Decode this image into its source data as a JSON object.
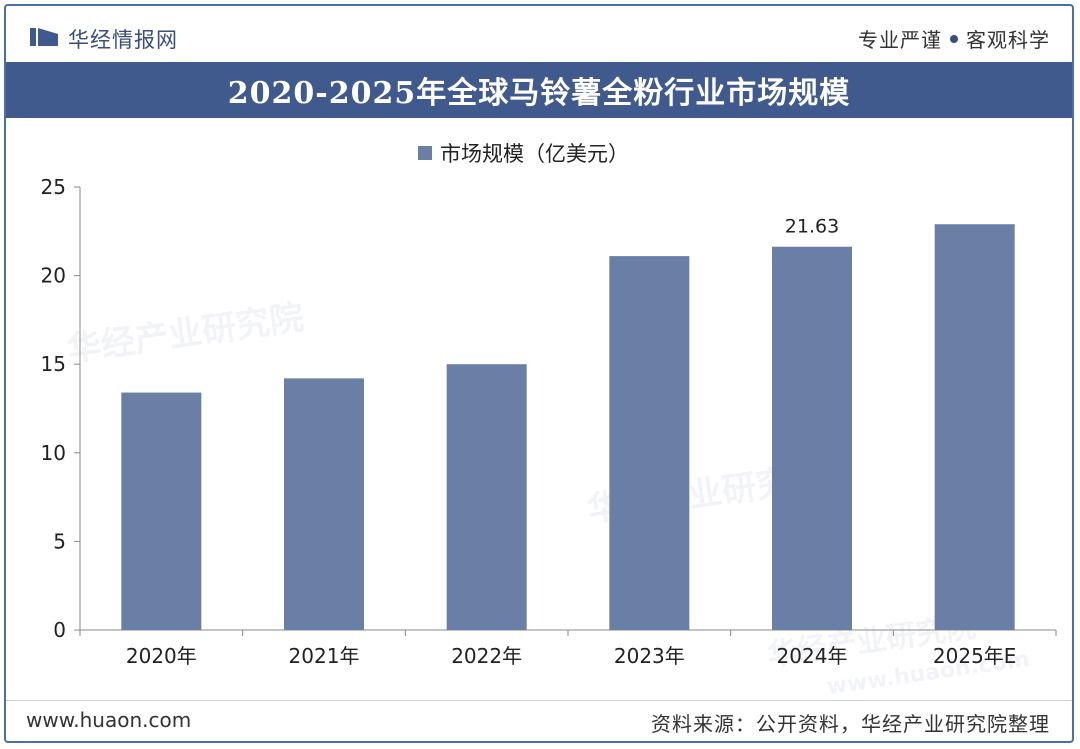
{
  "header": {
    "brand": "华经情报网",
    "slogan_left": "专业严谨",
    "slogan_right": "客观科学"
  },
  "title": "2020-2025年全球马铃薯全粉行业市场规模",
  "footer": {
    "site": "www.huaon.com",
    "source": "资料来源：公开资料，华经产业研究院整理"
  },
  "watermark": {
    "text": "华经产业研究院",
    "url": "www.huaon.com"
  },
  "colors": {
    "accent": "#405a8e",
    "bar": "#6a7fa6",
    "axis": "#888888"
  },
  "chart_data": {
    "type": "bar",
    "categories": [
      "2020年",
      "2021年",
      "2022年",
      "2023年",
      "2024年",
      "2025年E"
    ],
    "series": [
      {
        "name": "市场规模（亿美元）",
        "values": [
          13.4,
          14.2,
          15.0,
          21.1,
          21.63,
          22.9
        ]
      }
    ],
    "data_labels": [
      null,
      null,
      null,
      null,
      "21.63",
      null
    ],
    "yticks": [
      "0",
      "5",
      "10",
      "15",
      "20",
      "25"
    ],
    "ylim": [
      0,
      25
    ],
    "grid": false,
    "legend": "top-center"
  }
}
